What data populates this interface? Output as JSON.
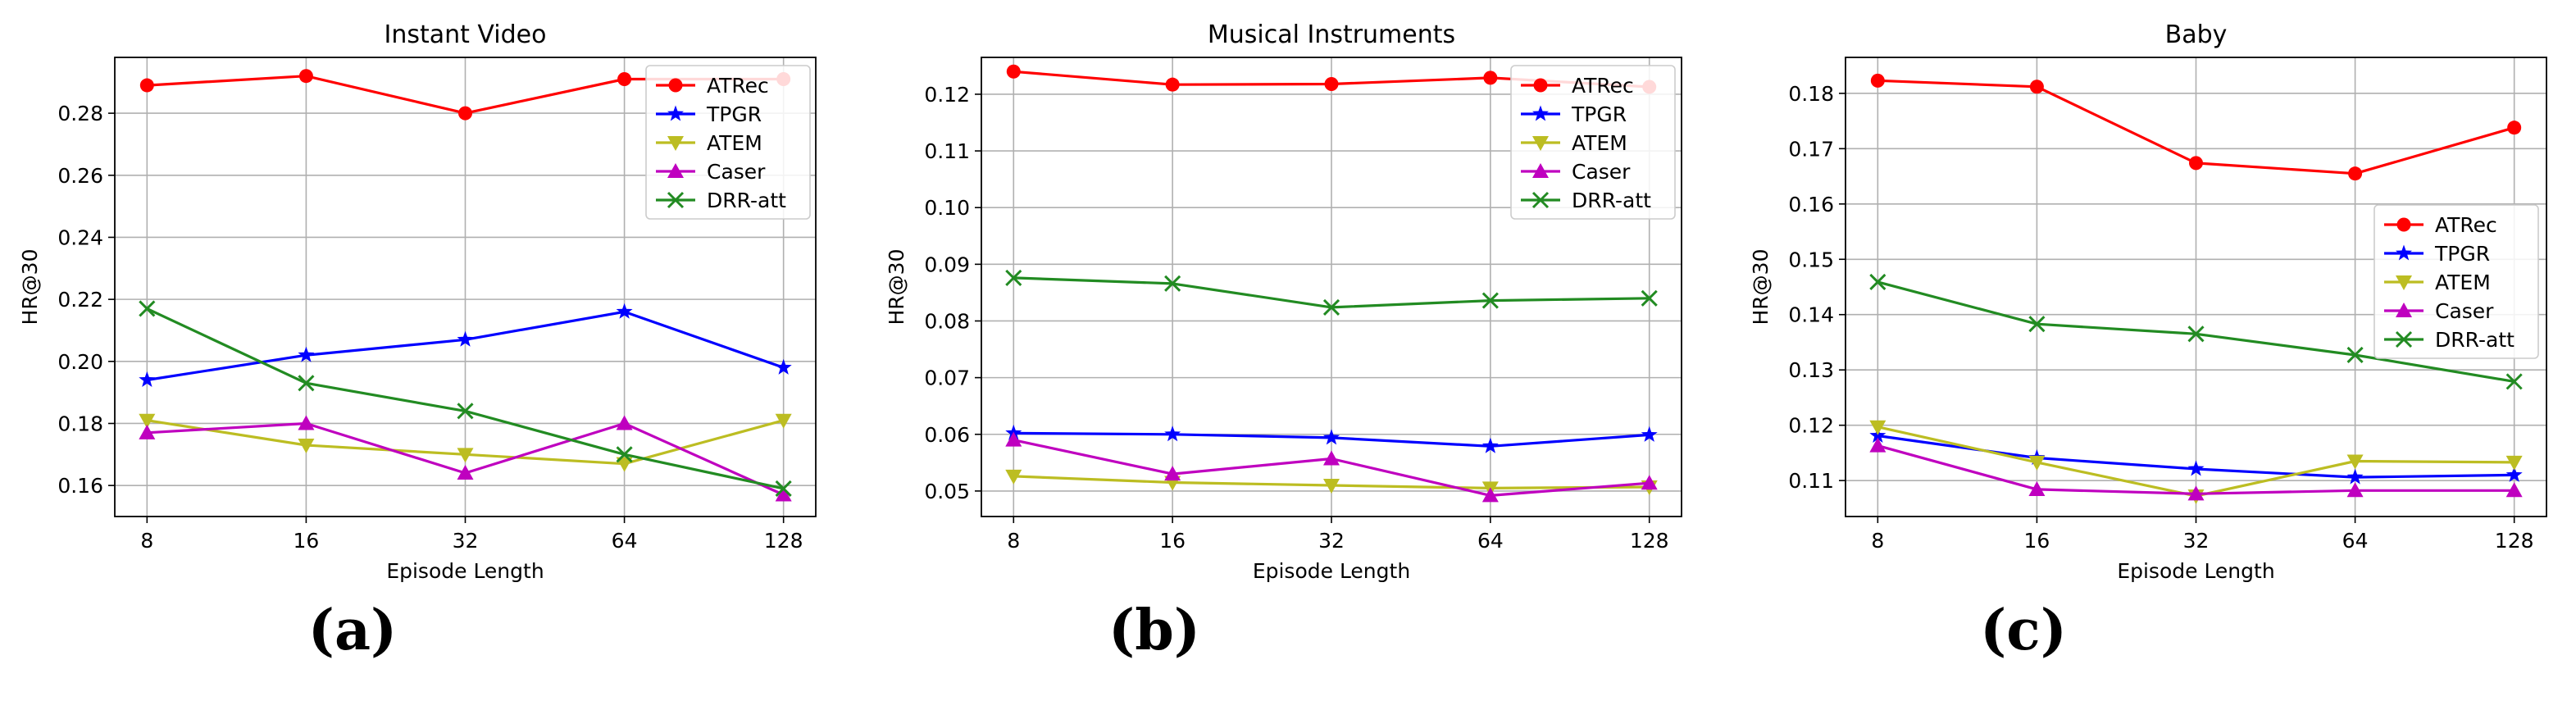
{
  "chart_data": [
    {
      "type": "line",
      "panel_label": "(a)",
      "title": "Instant Video",
      "xlabel": "Episode Length",
      "ylabel": "HR@30",
      "categories": [
        "8",
        "16",
        "32",
        "64",
        "128"
      ],
      "ylim": [
        0.15,
        0.298
      ],
      "yticks": [
        0.16,
        0.18,
        0.2,
        0.22,
        0.24,
        0.26,
        0.28
      ],
      "ytick_labels": [
        "0.16",
        "0.18",
        "0.20",
        "0.22",
        "0.24",
        "0.26",
        "0.28"
      ],
      "grid": true,
      "legend_position": "top-right",
      "series": [
        {
          "name": "ATRec",
          "color": "#ff0000",
          "marker": "circle",
          "values": [
            0.289,
            0.292,
            0.28,
            0.291,
            0.291
          ]
        },
        {
          "name": "TPGR",
          "color": "#0000ff",
          "marker": "star",
          "values": [
            0.194,
            0.202,
            0.207,
            0.216,
            0.198
          ]
        },
        {
          "name": "ATEM",
          "color": "#bcbd22",
          "marker": "tri-down",
          "values": [
            0.181,
            0.173,
            0.17,
            0.167,
            0.181
          ]
        },
        {
          "name": "Caser",
          "color": "#bf00bf",
          "marker": "tri-up",
          "values": [
            0.177,
            0.18,
            0.164,
            0.18,
            0.157
          ]
        },
        {
          "name": "DRR-att",
          "color": "#228b22",
          "marker": "x",
          "values": [
            0.217,
            0.193,
            0.184,
            0.17,
            0.159
          ]
        }
      ]
    },
    {
      "type": "line",
      "panel_label": "(b)",
      "title": "Musical Instruments",
      "xlabel": "Episode Length",
      "ylabel": "HR@30",
      "categories": [
        "8",
        "16",
        "32",
        "64",
        "128"
      ],
      "ylim": [
        0.0455,
        0.1265
      ],
      "yticks": [
        0.05,
        0.06,
        0.07,
        0.08,
        0.09,
        0.1,
        0.11,
        0.12
      ],
      "ytick_labels": [
        "0.05",
        "0.06",
        "0.07",
        "0.08",
        "0.09",
        "0.10",
        "0.11",
        "0.12"
      ],
      "grid": true,
      "legend_position": "top-right",
      "series": [
        {
          "name": "ATRec",
          "color": "#ff0000",
          "marker": "circle",
          "values": [
            0.124,
            0.1217,
            0.1218,
            0.1229,
            0.1213
          ]
        },
        {
          "name": "TPGR",
          "color": "#0000ff",
          "marker": "star",
          "values": [
            0.0602,
            0.06,
            0.0594,
            0.0579,
            0.0599
          ]
        },
        {
          "name": "ATEM",
          "color": "#bcbd22",
          "marker": "tri-down",
          "values": [
            0.0526,
            0.0515,
            0.051,
            0.0505,
            0.0507
          ]
        },
        {
          "name": "Caser",
          "color": "#bf00bf",
          "marker": "tri-up",
          "values": [
            0.059,
            0.053,
            0.0557,
            0.0492,
            0.0514
          ]
        },
        {
          "name": "DRR-att",
          "color": "#228b22",
          "marker": "x",
          "values": [
            0.0876,
            0.0866,
            0.0824,
            0.0836,
            0.084
          ]
        }
      ]
    },
    {
      "type": "line",
      "panel_label": "(c)",
      "title": "Baby",
      "xlabel": "Episode Length",
      "ylabel": "HR@30",
      "categories": [
        "8",
        "16",
        "32",
        "64",
        "128"
      ],
      "ylim": [
        0.1035,
        0.1865
      ],
      "yticks": [
        0.11,
        0.12,
        0.13,
        0.14,
        0.15,
        0.16,
        0.17,
        0.18
      ],
      "ytick_labels": [
        "0.11",
        "0.12",
        "0.13",
        "0.14",
        "0.15",
        "0.16",
        "0.17",
        "0.18"
      ],
      "grid": true,
      "legend_position": "center-right",
      "series": [
        {
          "name": "ATRec",
          "color": "#ff0000",
          "marker": "circle",
          "values": [
            0.1823,
            0.1812,
            0.1674,
            0.1655,
            0.1738
          ]
        },
        {
          "name": "TPGR",
          "color": "#0000ff",
          "marker": "star",
          "values": [
            0.1181,
            0.1141,
            0.1121,
            0.1106,
            0.111
          ]
        },
        {
          "name": "ATEM",
          "color": "#bcbd22",
          "marker": "tri-down",
          "values": [
            0.1197,
            0.1133,
            0.1072,
            0.1135,
            0.1133
          ]
        },
        {
          "name": "Caser",
          "color": "#bf00bf",
          "marker": "tri-up",
          "values": [
            0.1163,
            0.1084,
            0.1076,
            0.1082,
            0.1082
          ]
        },
        {
          "name": "DRR-att",
          "color": "#228b22",
          "marker": "x",
          "values": [
            0.1459,
            0.1383,
            0.1365,
            0.1327,
            0.1279
          ]
        }
      ]
    }
  ]
}
